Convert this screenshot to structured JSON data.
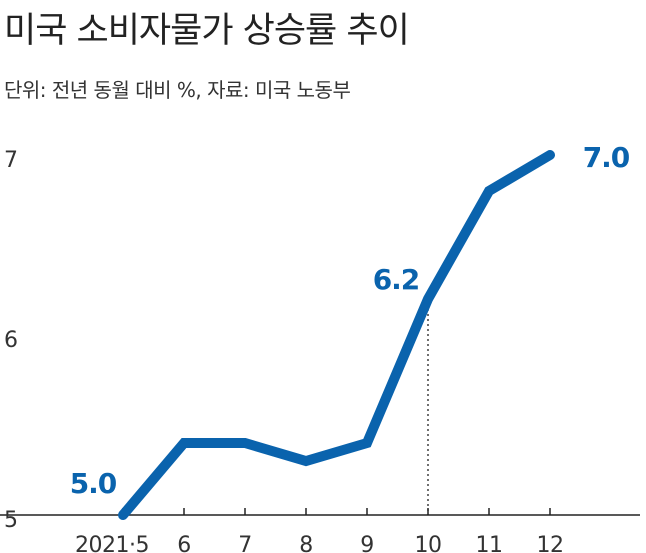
{
  "header": {
    "title": "미국 소비자물가 상승률 추이",
    "subtitle": "단위: 전년 동월 대비 %, 자료: 미국 노동부"
  },
  "colors": {
    "line": "#0a63ad",
    "axis": "#222222",
    "text": "#333333"
  },
  "chart_data": {
    "type": "line",
    "title": "미국 소비자물가 상승률 추이",
    "subtitle": "단위: 전년 동월 대비 %, 자료: 미국 노동부",
    "categories": [
      "2021·5",
      "6",
      "7",
      "8",
      "9",
      "10",
      "11",
      "12"
    ],
    "series": [
      {
        "values": [
          5.0,
          5.4,
          5.4,
          5.3,
          5.4,
          6.2,
          6.8,
          7.0
        ]
      }
    ],
    "ylim": [
      5,
      7
    ],
    "yticks": [
      5,
      6,
      7
    ],
    "grid": false,
    "data_labels": [
      {
        "index": 0,
        "text": "5.0"
      },
      {
        "index": 5,
        "text": "6.2"
      },
      {
        "index": 7,
        "text": "7.0"
      }
    ],
    "reference_line_index": 5
  }
}
